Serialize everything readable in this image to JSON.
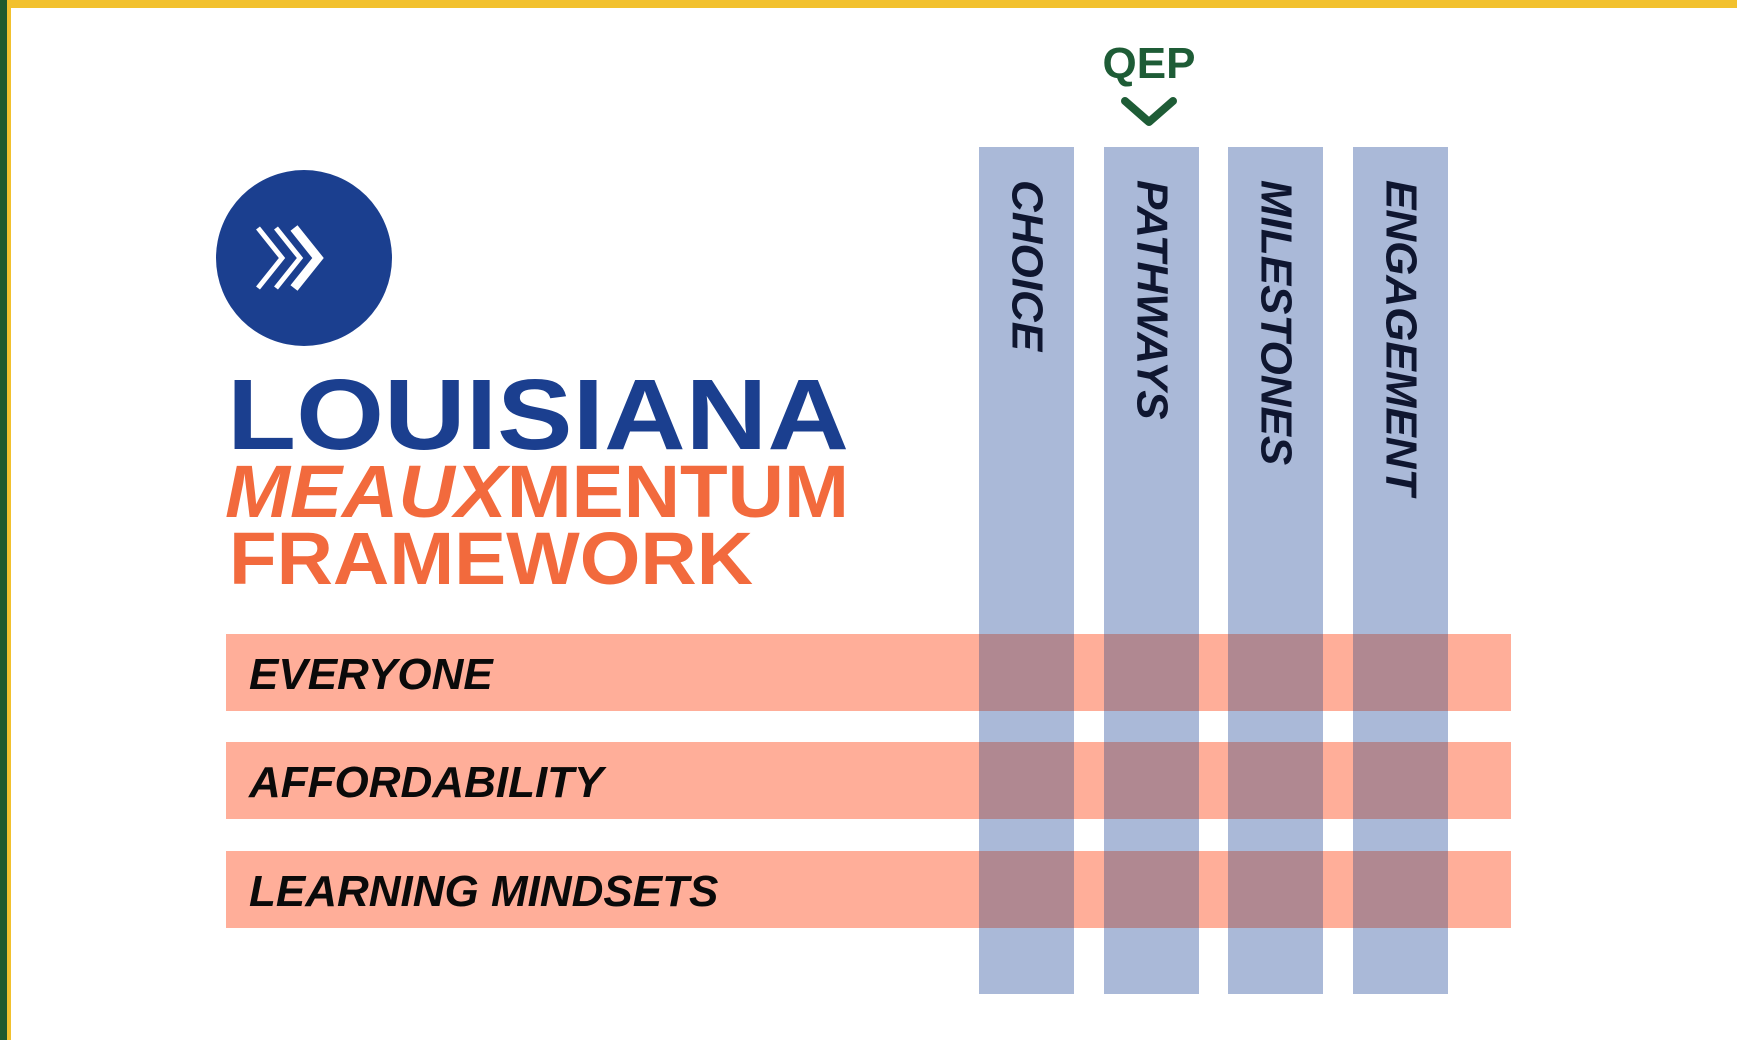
{
  "qep": "QEP",
  "logo": {
    "line1": "LOUISIANA",
    "line2a": "MEAUX",
    "line2b": "MENTUM",
    "line3": "FRAMEWORK"
  },
  "columns": [
    "CHOICE",
    "PATHWAYS",
    "MILESTONES",
    "ENGAGEMENT"
  ],
  "rows": [
    "EVERYONE",
    "AFFORDABILITY",
    "LEARNING MINDSETS"
  ]
}
